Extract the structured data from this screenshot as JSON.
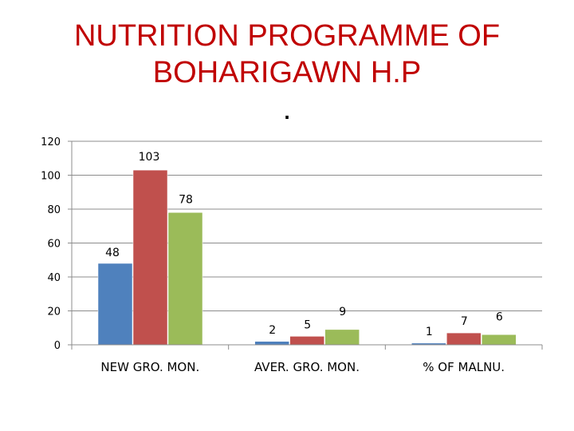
{
  "slide": {
    "title_line1": "NUTRITION PROGRAMME OF",
    "title_line2": "BOHARIGAWN  H.P",
    "title_dot": "."
  },
  "chart_data": {
    "type": "bar",
    "categories": [
      "NEW GRO. MON.",
      "AVER. GRO. MON.",
      "% OF MALNU."
    ],
    "series": [
      {
        "values": [
          48,
          2,
          1
        ],
        "color": "#4f81bd"
      },
      {
        "values": [
          103,
          5,
          7
        ],
        "color": "#c0504d"
      },
      {
        "values": [
          78,
          9,
          6
        ],
        "color": "#9bbb59"
      }
    ],
    "ylim": [
      0,
      120
    ],
    "yticks": [
      0,
      20,
      40,
      60,
      80,
      100,
      120
    ],
    "grid": true,
    "legend": "none"
  }
}
